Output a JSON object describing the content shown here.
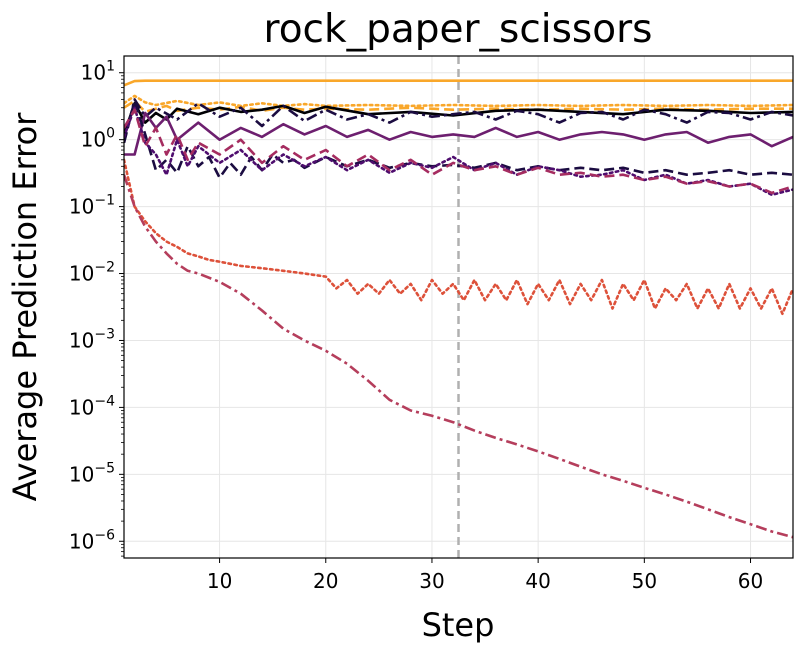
{
  "chart_data": {
    "type": "line",
    "title": "rock_paper_scissors",
    "xlabel": "Step",
    "ylabel": "Average Prediction Error",
    "xlim": [
      1,
      64
    ],
    "ylim_log10": [
      -6.25,
      1.25
    ],
    "yscale": "log",
    "grid": true,
    "xticks": [
      10,
      20,
      30,
      40,
      50,
      60
    ],
    "yticks": [
      {
        "exp": 1,
        "label": "10",
        "sup": "1"
      },
      {
        "exp": 0,
        "label": "10",
        "sup": "0"
      },
      {
        "exp": -1,
        "label": "10",
        "sup": "−1"
      },
      {
        "exp": -2,
        "label": "10",
        "sup": "−2"
      },
      {
        "exp": -3,
        "label": "10",
        "sup": "−3"
      },
      {
        "exp": -4,
        "label": "10",
        "sup": "−4"
      },
      {
        "exp": -5,
        "label": "10",
        "sup": "−5"
      },
      {
        "exp": -6,
        "label": "10",
        "sup": "−6"
      }
    ],
    "vline": {
      "x": 32.5,
      "color": "#b0b0b0",
      "style": "dashed"
    },
    "series": [
      {
        "color": "#f9a72a",
        "dash": "solid",
        "x": [
          1,
          2,
          3,
          64
        ],
        "y": [
          6.5,
          7.5,
          7.6,
          7.6
        ]
      },
      {
        "color": "#f9a72a",
        "dash": "dashed",
        "x": [
          1,
          2,
          3,
          4,
          5,
          6,
          8,
          10,
          12,
          14,
          16,
          18,
          20,
          24,
          28,
          32,
          36,
          40,
          44,
          48,
          52,
          56,
          60,
          64
        ],
        "y": [
          3.0,
          3.8,
          2.6,
          2.9,
          3.2,
          2.7,
          3.0,
          2.8,
          3.1,
          2.7,
          3.0,
          2.8,
          2.9,
          2.8,
          3.0,
          2.8,
          2.9,
          2.8,
          2.9,
          2.8,
          2.9,
          2.8,
          2.9,
          2.9
        ]
      },
      {
        "color": "#f9a72a",
        "dash": "dotted",
        "x": [
          1,
          2,
          3,
          4,
          6,
          8,
          10,
          12,
          14,
          16,
          18,
          20,
          24,
          28,
          32,
          36,
          40,
          44,
          48,
          52,
          56,
          60,
          64
        ],
        "y": [
          3.5,
          4.5,
          3.6,
          3.3,
          3.8,
          3.3,
          3.6,
          3.2,
          3.5,
          3.2,
          3.4,
          3.2,
          3.3,
          3.2,
          3.3,
          3.2,
          3.3,
          3.2,
          3.3,
          3.2,
          3.3,
          3.2,
          3.3
        ]
      },
      {
        "color": "#000004",
        "dash": "solid",
        "x": [
          1,
          2,
          3,
          4,
          5,
          6,
          8,
          10,
          12,
          14,
          16,
          18,
          20,
          24,
          28,
          32,
          36,
          40,
          44,
          48,
          52,
          56,
          60,
          64
        ],
        "y": [
          1.2,
          3.5,
          1.8,
          2.5,
          2.0,
          2.9,
          2.4,
          3.0,
          2.6,
          2.8,
          3.2,
          2.5,
          3.1,
          2.4,
          2.6,
          2.3,
          2.7,
          2.8,
          2.6,
          2.4,
          2.8,
          2.7,
          2.5,
          2.6
        ]
      },
      {
        "color": "#1b0c41",
        "dash": "dashdot",
        "x": [
          1,
          2,
          3,
          4,
          6,
          8,
          10,
          12,
          14,
          16,
          18,
          20,
          22,
          24,
          26,
          28,
          30,
          32,
          34,
          36,
          38,
          40,
          42,
          44,
          46,
          48,
          50,
          52,
          54,
          56,
          58,
          60,
          62,
          64
        ],
        "y": [
          0.9,
          4.0,
          2.2,
          3.0,
          2.0,
          3.5,
          2.2,
          3.0,
          1.6,
          3.2,
          1.9,
          2.8,
          2.0,
          2.4,
          1.8,
          2.6,
          2.2,
          2.4,
          2.6,
          2.0,
          2.7,
          2.4,
          1.8,
          2.5,
          2.6,
          2.0,
          2.8,
          2.4,
          1.8,
          2.6,
          2.5,
          2.0,
          2.6,
          2.3
        ]
      },
      {
        "color": "#6d1f6f",
        "dash": "solid",
        "x": [
          1,
          2,
          3,
          4,
          5,
          6,
          8,
          10,
          12,
          14,
          16,
          18,
          20,
          22,
          24,
          26,
          28,
          30,
          32,
          34,
          36,
          38,
          40,
          42,
          44,
          46,
          48,
          50,
          52,
          54,
          56,
          58,
          60,
          62,
          64
        ],
        "y": [
          0.6,
          0.6,
          2.5,
          1.5,
          2.2,
          1.0,
          1.8,
          1.0,
          1.5,
          1.1,
          1.7,
          1.2,
          1.6,
          1.1,
          1.4,
          1.0,
          1.3,
          1.1,
          1.2,
          1.1,
          1.5,
          1.1,
          1.3,
          1.0,
          1.2,
          1.3,
          1.2,
          1.0,
          1.2,
          1.3,
          0.9,
          1.1,
          1.2,
          0.8,
          1.1
        ]
      },
      {
        "color": "#1b0c41",
        "dash": "dashed",
        "x": [
          1,
          2,
          3,
          4,
          5,
          6,
          7,
          8,
          9,
          10,
          11,
          12,
          13,
          14,
          15,
          16,
          17,
          18,
          20,
          22,
          24,
          26,
          28,
          30,
          32,
          34,
          36,
          38,
          40,
          42,
          44,
          46,
          48,
          50,
          52,
          54,
          56,
          58,
          60,
          62,
          64
        ],
        "y": [
          0.9,
          3.8,
          1.2,
          0.35,
          0.5,
          0.32,
          0.8,
          0.4,
          0.55,
          0.27,
          0.45,
          0.3,
          0.55,
          0.35,
          0.6,
          0.45,
          0.5,
          0.38,
          0.55,
          0.4,
          0.5,
          0.38,
          0.45,
          0.4,
          0.42,
          0.38,
          0.45,
          0.35,
          0.4,
          0.35,
          0.38,
          0.35,
          0.38,
          0.32,
          0.35,
          0.3,
          0.32,
          0.35,
          0.3,
          0.32,
          0.3
        ]
      },
      {
        "color": "#4e0d6e",
        "dash": "dotted",
        "x": [
          1,
          2,
          3,
          4,
          5,
          6,
          7,
          8,
          10,
          12,
          14,
          16,
          18,
          20,
          22,
          24,
          26,
          28,
          30,
          32,
          34,
          36,
          38,
          40,
          42,
          44,
          46,
          48,
          50,
          52,
          54,
          56,
          58,
          60,
          62,
          64
        ],
        "y": [
          1.1,
          3.0,
          0.9,
          0.6,
          0.3,
          1.0,
          0.4,
          0.8,
          0.45,
          0.7,
          0.35,
          0.6,
          0.4,
          0.55,
          0.35,
          0.5,
          0.32,
          0.45,
          0.38,
          0.55,
          0.35,
          0.45,
          0.3,
          0.4,
          0.35,
          0.28,
          0.3,
          0.35,
          0.25,
          0.3,
          0.22,
          0.25,
          0.2,
          0.22,
          0.15,
          0.18
        ]
      },
      {
        "color": "#a52c60",
        "dash": "dashed",
        "x": [
          1,
          2,
          3,
          4,
          5,
          6,
          7,
          8,
          10,
          12,
          14,
          16,
          18,
          20,
          22,
          24,
          26,
          28,
          30,
          32,
          34,
          36,
          38,
          40,
          42,
          44,
          46,
          48,
          50,
          52,
          54,
          56,
          58,
          60,
          62,
          64
        ],
        "y": [
          1.5,
          2.8,
          0.8,
          1.5,
          0.6,
          1.2,
          0.5,
          0.9,
          0.6,
          1.0,
          0.45,
          0.8,
          0.5,
          0.7,
          0.4,
          0.6,
          0.35,
          0.5,
          0.3,
          0.45,
          0.35,
          0.4,
          0.3,
          0.38,
          0.3,
          0.32,
          0.28,
          0.3,
          0.25,
          0.28,
          0.22,
          0.24,
          0.2,
          0.22,
          0.16,
          0.2
        ]
      },
      {
        "color": "#dd513a",
        "dash": "dotted",
        "x": [
          1,
          2,
          3,
          4,
          5,
          6,
          7,
          8,
          9,
          10,
          12,
          14,
          16,
          18,
          20,
          21,
          22,
          23,
          24,
          25,
          26,
          27,
          28,
          29,
          30,
          31,
          32,
          33,
          34,
          35,
          36,
          37,
          38,
          39,
          40,
          41,
          42,
          43,
          44,
          45,
          46,
          47,
          48,
          49,
          50,
          51,
          52,
          53,
          54,
          55,
          56,
          57,
          58,
          59,
          60,
          61,
          62,
          63,
          64
        ],
        "y": [
          0.5,
          0.1,
          0.06,
          0.04,
          0.03,
          0.025,
          0.02,
          0.018,
          0.016,
          0.015,
          0.013,
          0.012,
          0.011,
          0.01,
          0.009,
          0.006,
          0.008,
          0.005,
          0.007,
          0.005,
          0.008,
          0.005,
          0.007,
          0.004,
          0.008,
          0.005,
          0.007,
          0.004,
          0.008,
          0.004,
          0.007,
          0.004,
          0.008,
          0.0035,
          0.007,
          0.004,
          0.008,
          0.0035,
          0.007,
          0.004,
          0.008,
          0.003,
          0.007,
          0.004,
          0.008,
          0.003,
          0.006,
          0.004,
          0.007,
          0.003,
          0.006,
          0.003,
          0.007,
          0.003,
          0.006,
          0.003,
          0.006,
          0.0025,
          0.006
        ]
      },
      {
        "color": "#b53e5c",
        "dash": "dashdot",
        "x": [
          1,
          2,
          3,
          4,
          5,
          6,
          7,
          8,
          10,
          12,
          14,
          16,
          18,
          20,
          22,
          24,
          26,
          28,
          30,
          32,
          34,
          36,
          38,
          40,
          42,
          44,
          46,
          48,
          50,
          52,
          54,
          56,
          58,
          60,
          62,
          64
        ],
        "y": [
          0.3,
          0.1,
          0.05,
          0.03,
          0.02,
          0.014,
          0.011,
          0.01,
          0.0075,
          0.005,
          0.0028,
          0.0015,
          0.001,
          0.0007,
          0.00045,
          0.00025,
          0.00013,
          9e-05,
          7.5e-05,
          6e-05,
          4.5e-05,
          3.5e-05,
          2.8e-05,
          2.2e-05,
          1.7e-05,
          1.3e-05,
          1e-05,
          8e-06,
          6.3e-06,
          5e-06,
          3.9e-06,
          3e-06,
          2.3e-06,
          1.8e-06,
          1.4e-06,
          1.15e-06
        ]
      }
    ]
  }
}
